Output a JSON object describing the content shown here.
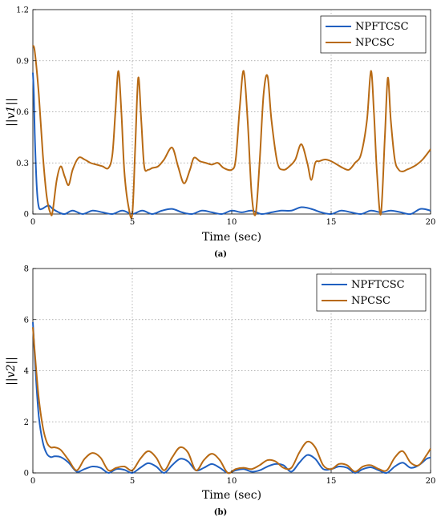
{
  "chart_data": [
    {
      "type": "line",
      "panel_label": "(a)",
      "xlabel": "Time (sec)",
      "ylabel": "||v1||",
      "xlim": [
        0,
        20
      ],
      "ylim": [
        0,
        1.2
      ],
      "xticks": [
        "0",
        "5",
        "10",
        "15",
        "20"
      ],
      "yticks": [
        "0",
        "0.3",
        "0.6",
        "0.9",
        "1.2"
      ],
      "grid": true,
      "legend_position": "top-right",
      "series": [
        {
          "name": "NPFTCSC",
          "color": "#2060c0",
          "x": [
            0,
            0.05,
            0.1,
            0.2,
            0.3,
            0.45,
            0.6,
            0.8,
            1.0,
            1.3,
            1.6,
            2.0,
            2.5,
            3.0,
            3.5,
            4.0,
            4.5,
            5.0,
            5.5,
            6.0,
            6.5,
            7.0,
            7.5,
            8.0,
            8.5,
            9.0,
            9.5,
            10.0,
            10.5,
            11.0,
            11.5,
            12.0,
            12.5,
            13.0,
            13.5,
            14.0,
            14.5,
            15.0,
            15.5,
            16.0,
            16.5,
            17.0,
            17.5,
            18.0,
            18.5,
            19.0,
            19.5,
            20.0
          ],
          "y": [
            0.83,
            0.7,
            0.45,
            0.15,
            0.04,
            0.03,
            0.04,
            0.05,
            0.03,
            0.01,
            0.0,
            0.02,
            0.0,
            0.02,
            0.01,
            0.0,
            0.02,
            0.0,
            0.02,
            0.0,
            0.02,
            0.03,
            0.01,
            0.0,
            0.02,
            0.01,
            0.0,
            0.02,
            0.01,
            0.02,
            0.0,
            0.01,
            0.02,
            0.02,
            0.04,
            0.03,
            0.01,
            0.0,
            0.02,
            0.01,
            0.0,
            0.02,
            0.01,
            0.02,
            0.01,
            0.0,
            0.03,
            0.02
          ]
        },
        {
          "name": "NPCSC",
          "color": "#b86a14",
          "x": [
            0,
            0.1,
            0.3,
            0.5,
            0.7,
            0.9,
            1.0,
            1.2,
            1.4,
            1.6,
            1.8,
            2.0,
            2.3,
            2.6,
            2.9,
            3.2,
            3.5,
            3.8,
            4.0,
            4.15,
            4.3,
            4.45,
            4.6,
            4.8,
            5.0,
            5.15,
            5.3,
            5.45,
            5.6,
            5.8,
            6.0,
            6.3,
            6.6,
            7.0,
            7.3,
            7.6,
            7.9,
            8.1,
            8.4,
            8.7,
            9.0,
            9.3,
            9.6,
            10.0,
            10.2,
            10.4,
            10.6,
            10.8,
            11.0,
            11.2,
            11.4,
            11.6,
            11.8,
            12.0,
            12.3,
            12.6,
            12.9,
            13.2,
            13.5,
            13.8,
            14.0,
            14.2,
            14.4,
            14.7,
            15.0,
            15.3,
            15.6,
            15.9,
            16.2,
            16.5,
            16.8,
            17.0,
            17.15,
            17.3,
            17.5,
            17.7,
            17.85,
            18.0,
            18.2,
            18.4,
            18.6,
            18.8,
            19.0,
            19.3,
            19.6,
            20.0
          ],
          "y": [
            0.99,
            0.95,
            0.7,
            0.35,
            0.1,
            0.0,
            0.02,
            0.2,
            0.28,
            0.22,
            0.17,
            0.26,
            0.33,
            0.32,
            0.3,
            0.29,
            0.28,
            0.27,
            0.35,
            0.6,
            0.84,
            0.6,
            0.25,
            0.05,
            0.0,
            0.4,
            0.8,
            0.55,
            0.28,
            0.26,
            0.27,
            0.28,
            0.32,
            0.39,
            0.28,
            0.18,
            0.26,
            0.33,
            0.31,
            0.3,
            0.29,
            0.3,
            0.27,
            0.26,
            0.32,
            0.62,
            0.84,
            0.55,
            0.12,
            0.0,
            0.3,
            0.7,
            0.81,
            0.55,
            0.3,
            0.26,
            0.28,
            0.32,
            0.41,
            0.3,
            0.2,
            0.3,
            0.31,
            0.32,
            0.31,
            0.29,
            0.27,
            0.26,
            0.3,
            0.35,
            0.55,
            0.84,
            0.6,
            0.25,
            0.0,
            0.45,
            0.8,
            0.55,
            0.32,
            0.26,
            0.25,
            0.26,
            0.27,
            0.29,
            0.32,
            0.38
          ]
        }
      ]
    },
    {
      "type": "line",
      "panel_label": "(b)",
      "xlabel": "Time (sec)",
      "ylabel": "||v2||",
      "xlim": [
        0,
        20
      ],
      "ylim": [
        0,
        8
      ],
      "xticks": [
        "0",
        "5",
        "10",
        "15",
        "20"
      ],
      "yticks": [
        "0",
        "2",
        "4",
        "6",
        "8"
      ],
      "grid": true,
      "legend_position": "top-right",
      "series": [
        {
          "name": "NPFTCSC",
          "color": "#2060c0",
          "x": [
            0,
            0.15,
            0.3,
            0.5,
            0.7,
            0.9,
            1.1,
            1.4,
            1.8,
            2.2,
            2.6,
            3.0,
            3.4,
            3.8,
            4.2,
            4.6,
            5.0,
            5.4,
            5.8,
            6.2,
            6.6,
            7.0,
            7.4,
            7.8,
            8.2,
            8.6,
            9.0,
            9.4,
            9.8,
            10.2,
            10.6,
            11.0,
            11.4,
            11.8,
            12.2,
            12.6,
            13.0,
            13.4,
            13.8,
            14.2,
            14.6,
            15.0,
            15.4,
            15.8,
            16.2,
            16.6,
            17.0,
            17.4,
            17.8,
            18.2,
            18.6,
            19.0,
            19.4,
            19.8,
            20.0
          ],
          "y": [
            5.9,
            3.8,
            2.2,
            1.2,
            0.75,
            0.62,
            0.65,
            0.62,
            0.4,
            0.05,
            0.15,
            0.25,
            0.2,
            0.0,
            0.15,
            0.12,
            0.0,
            0.2,
            0.38,
            0.25,
            0.0,
            0.3,
            0.55,
            0.45,
            0.1,
            0.2,
            0.35,
            0.2,
            0.0,
            0.1,
            0.15,
            0.05,
            0.1,
            0.25,
            0.35,
            0.3,
            0.05,
            0.4,
            0.7,
            0.55,
            0.15,
            0.15,
            0.25,
            0.2,
            0.0,
            0.15,
            0.22,
            0.1,
            0.0,
            0.25,
            0.4,
            0.2,
            0.3,
            0.55,
            0.6
          ]
        },
        {
          "name": "NPCSC",
          "color": "#b86a14",
          "x": [
            0,
            0.15,
            0.3,
            0.5,
            0.7,
            0.9,
            1.1,
            1.4,
            1.8,
            2.2,
            2.6,
            3.0,
            3.4,
            3.8,
            4.2,
            4.6,
            5.0,
            5.4,
            5.8,
            6.2,
            6.6,
            7.0,
            7.4,
            7.8,
            8.2,
            8.6,
            9.0,
            9.4,
            9.8,
            10.2,
            10.6,
            11.0,
            11.4,
            11.8,
            12.2,
            12.6,
            13.0,
            13.4,
            13.8,
            14.2,
            14.6,
            15.0,
            15.4,
            15.8,
            16.2,
            16.6,
            17.0,
            17.4,
            17.8,
            18.2,
            18.6,
            19.0,
            19.4,
            19.8,
            20.0
          ],
          "y": [
            5.7,
            4.2,
            2.9,
            1.8,
            1.2,
            1.0,
            1.0,
            0.9,
            0.5,
            0.1,
            0.55,
            0.78,
            0.6,
            0.1,
            0.2,
            0.25,
            0.1,
            0.55,
            0.85,
            0.6,
            0.1,
            0.6,
            1.0,
            0.8,
            0.1,
            0.5,
            0.75,
            0.5,
            0.0,
            0.15,
            0.2,
            0.15,
            0.3,
            0.5,
            0.45,
            0.2,
            0.2,
            0.8,
            1.22,
            1.0,
            0.3,
            0.15,
            0.35,
            0.3,
            0.05,
            0.25,
            0.3,
            0.15,
            0.1,
            0.6,
            0.85,
            0.4,
            0.3,
            0.7,
            0.95
          ]
        }
      ]
    }
  ]
}
